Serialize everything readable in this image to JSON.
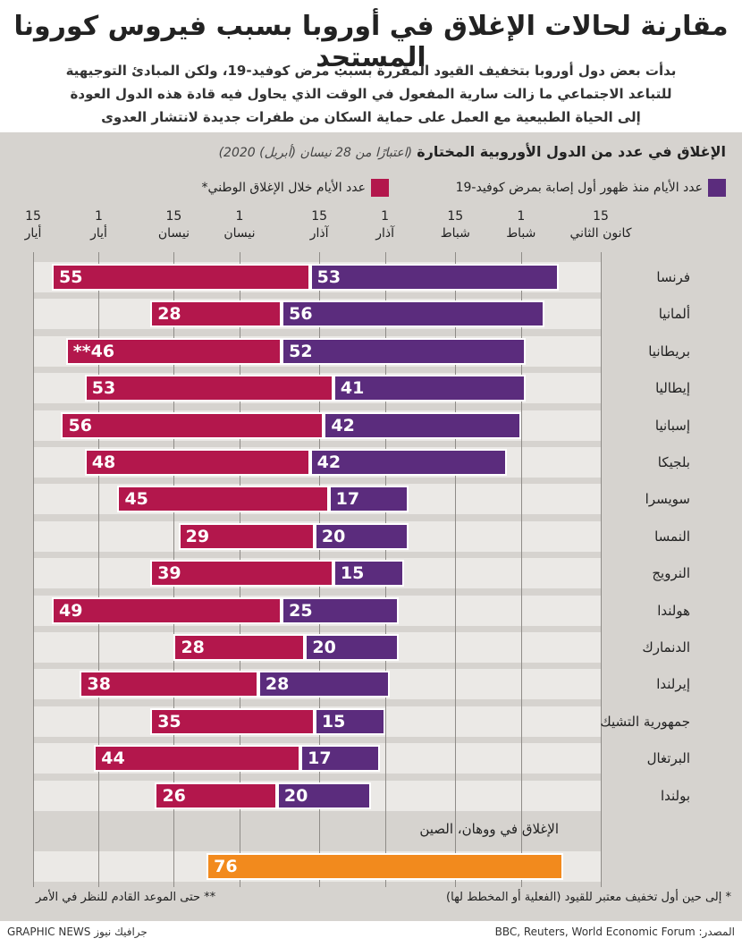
{
  "header": {
    "title": "مقارنة لحالات الإغلاق في أوروبا بسبب فيروس كورونا المستجد",
    "subtitle": [
      "بدأت بعض دول أوروبا بتخفيف القيود المقررة بسبب مرض كوفيد-19، ولكن المبادئ التوجيهية",
      "للتباعد الاجتماعي ما زالت سارية المفعول في الوقت الذي يحاول فيه قادة هذه الدول العودة",
      "إلى الحياة الطبيعية مع العمل على حماية السكان من طفرات جديدة لانتشار العدوى"
    ]
  },
  "chart_data": {
    "type": "bar",
    "title": "الإغلاق في عدد من الدول الأوروبية المختارة",
    "subtitle": "(اعتبارًا من 28 نيسان (أبريل) 2020)",
    "categories": [
      "فرنسا",
      "ألمانيا",
      "بريطانيا",
      "إيطاليا",
      "إسبانيا",
      "بلجيكا",
      "سويسرا",
      "النمسا",
      "النرويج",
      "هولندا",
      "الدنمارك",
      "إيرلندا",
      "جمهورية التشيك",
      "البرتغال",
      "بولندا"
    ],
    "x": [
      24,
      27,
      31,
      31,
      32,
      35,
      56,
      56,
      57,
      58,
      58,
      60,
      61,
      62,
      64
    ],
    "series": [
      {
        "name": "عدد الأيام منذ ظهور أول إصابة بمرض كوفيد-19",
        "color": "#5b2c7d",
        "values": [
          53,
          56,
          52,
          41,
          42,
          42,
          17,
          20,
          15,
          25,
          20,
          28,
          15,
          17,
          20
        ]
      },
      {
        "name": "عدد الأيام خلال الإغلاق الوطني*",
        "color": "#b3174c",
        "values": [
          55,
          28,
          46,
          53,
          56,
          48,
          45,
          29,
          39,
          49,
          28,
          38,
          35,
          44,
          26
        ],
        "value_labels": [
          "55",
          "28",
          "**46",
          "53",
          "56",
          "48",
          "45",
          "29",
          "39",
          "49",
          "28",
          "38",
          "35",
          "44",
          "26"
        ]
      }
    ],
    "extra": {
      "label": "الإغلاق في ووهان، الصين",
      "x": 23,
      "value": 76,
      "color": "#f28a1d"
    },
    "xlim": [
      136,
      15
    ],
    "xticks": [
      {
        "value": 15,
        "label": "15\nكانون الثاني"
      },
      {
        "value": 32,
        "label": "1\nشباط"
      },
      {
        "value": 46,
        "label": "15\nشباط"
      },
      {
        "value": 61,
        "label": "1\nآذار"
      },
      {
        "value": 75,
        "label": "15\nآذار"
      },
      {
        "value": 92,
        "label": "1\nنيسان"
      },
      {
        "value": 106,
        "label": "15\nنيسان"
      },
      {
        "value": 122,
        "label": "1\nأيار"
      },
      {
        "value": 136,
        "label": "15\nأيار"
      }
    ],
    "grid": true
  },
  "footnotes": [
    "* إلى حين أول تخفيف معتبر للقيود (الفعلية أو المخطط لها)",
    "** حتى الموعد القادم للنظر في الأمر"
  ],
  "source": "المصدر: BBC, Reuters, World Economic Forum",
  "credit": "GRAPHIC NEWS جرافيك نيوز"
}
